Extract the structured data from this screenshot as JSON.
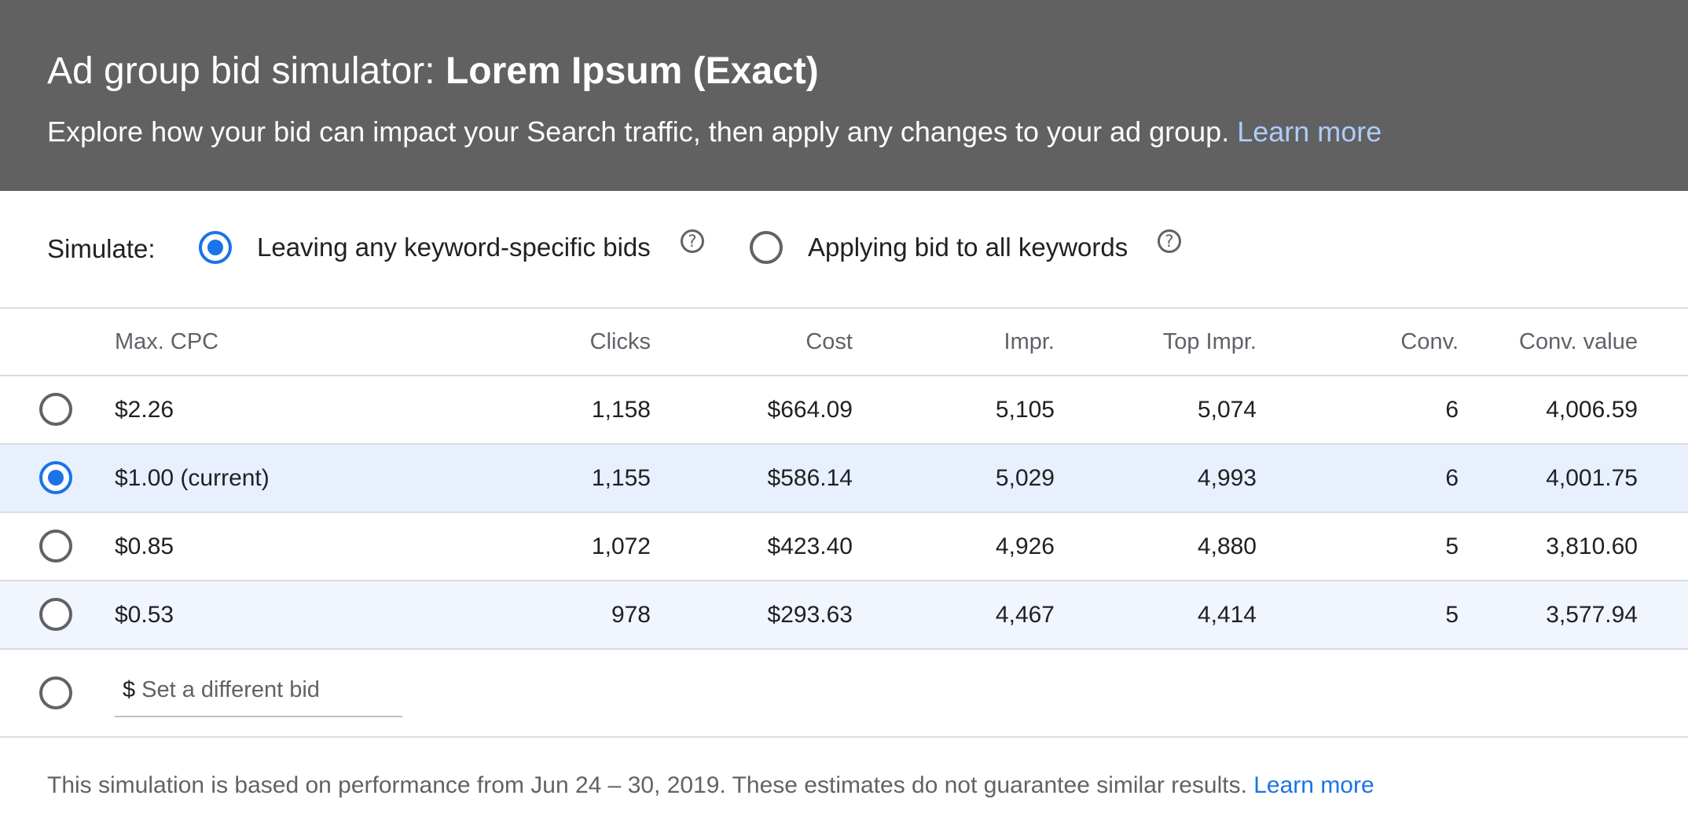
{
  "header": {
    "title_prefix": "Ad group bid simulator: ",
    "title_name": "Lorem Ipsum (Exact)",
    "subtitle": "Explore how your bid can impact your Search traffic, then apply any changes to your ad group. ",
    "learn_more": "Learn more"
  },
  "simulate": {
    "label": "Simulate:",
    "options": [
      {
        "label": "Leaving any keyword-specific bids",
        "selected": true
      },
      {
        "label": "Applying bid to all keywords",
        "selected": false
      }
    ],
    "help_icon_glyph": "?"
  },
  "table": {
    "columns": [
      "Max. CPC",
      "Clicks",
      "Cost",
      "Impr.",
      "Top Impr.",
      "Conv.",
      "Conv. value"
    ],
    "rows": [
      {
        "max_cpc": "$2.26",
        "clicks": "1,158",
        "cost": "$664.09",
        "impr": "5,105",
        "top_impr": "5,074",
        "conv": "6",
        "conv_value": "4,006.59",
        "selected": false
      },
      {
        "max_cpc": "$1.00 (current)",
        "clicks": "1,155",
        "cost": "$586.14",
        "impr": "5,029",
        "top_impr": "4,993",
        "conv": "6",
        "conv_value": "4,001.75",
        "selected": true
      },
      {
        "max_cpc": "$0.85",
        "clicks": "1,072",
        "cost": "$423.40",
        "impr": "4,926",
        "top_impr": "4,880",
        "conv": "5",
        "conv_value": "3,810.60",
        "selected": false
      },
      {
        "max_cpc": "$0.53",
        "clicks": "978",
        "cost": "$293.63",
        "impr": "4,467",
        "top_impr": "4,414",
        "conv": "5",
        "conv_value": "3,577.94",
        "selected": false
      }
    ],
    "custom_bid": {
      "currency": "$",
      "placeholder": "Set a different bid"
    }
  },
  "footer": {
    "text": "This simulation is based on performance from Jun 24 – 30, 2019. These estimates do not guarantee similar results. ",
    "learn_more": "Learn more"
  },
  "colors": {
    "header_bg": "#616161",
    "accent": "#1a73e8",
    "selected_row": "#e8f0fe",
    "header_link": "#aecbfa"
  }
}
